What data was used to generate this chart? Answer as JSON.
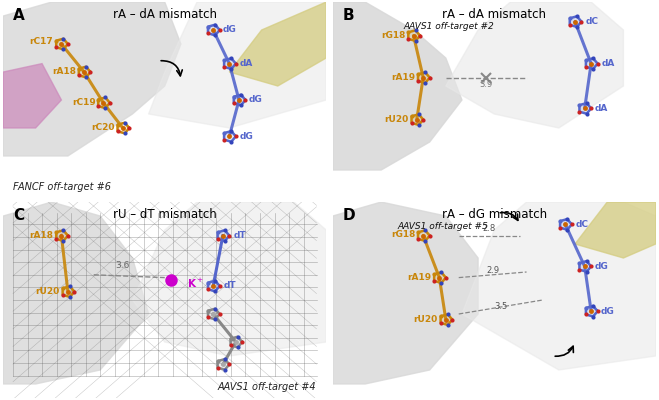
{
  "panel_titles": {
    "A": "rA – dA mismatch",
    "B": "rA – dA mismatch",
    "C": "rU – dT mismatch",
    "D": "rA – dG mismatch"
  },
  "panel_subtitles": {
    "A": "FANCF off-target #6",
    "B": "AAVS1 off-target #2",
    "C": "AAVS1 off-target #4",
    "D": "AAVS1 off-target #5"
  },
  "rna_color": "#c8860a",
  "dna_color": "#5566cc",
  "nitrogen_color": "#3344bb",
  "oxygen_color": "#cc2222",
  "phosphorus_color": "#cc6600",
  "surface_color": "#d8d8d8",
  "surface_light": "#e8e8e8",
  "surface_dark": "#c0c0c0",
  "yellow_surface": "#d4cc80",
  "pink_surface": "#cc88bb",
  "mesh_color": "#666666",
  "background_color": "#ffffff",
  "panel_bg": "#f0f0f0",
  "black": "#000000",
  "magenta": "#cc00cc",
  "gray_strand": "#888888"
}
